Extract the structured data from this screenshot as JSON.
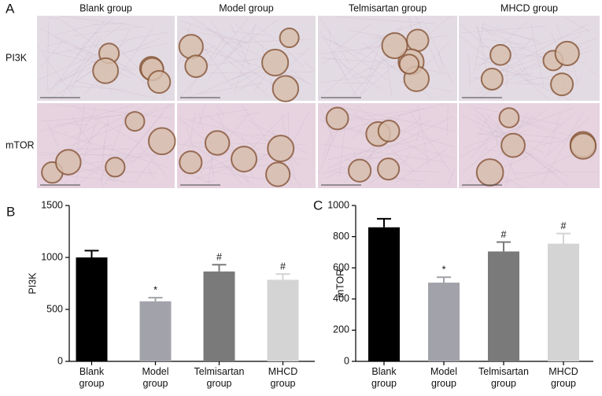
{
  "panel_a": {
    "label": "A",
    "columns": [
      "Blank group",
      "Model group",
      "Telmisartan group",
      "MHCD group"
    ],
    "rows": [
      "PI3K",
      "mTOR"
    ]
  },
  "chart_data": [
    {
      "type": "bar",
      "label": "B",
      "ylabel": "PI3K",
      "categories": [
        "Blank group",
        "Model group",
        "Telmisartan group",
        "MHCD group"
      ],
      "values": [
        1000,
        578,
        865,
        785
      ],
      "errors": [
        65,
        35,
        65,
        55
      ],
      "annotations": [
        null,
        "*",
        "#",
        "#"
      ],
      "colors": [
        "#000000",
        "#a2a2aa",
        "#7a7a7a",
        "#d4d4d4"
      ],
      "ylim": [
        0,
        1500
      ],
      "yticks": [
        0,
        500,
        1000,
        1500
      ]
    },
    {
      "type": "bar",
      "label": "C",
      "ylabel": "mTOR",
      "categories": [
        "Blank group",
        "Model group",
        "Telmisartan group",
        "MHCD group"
      ],
      "values": [
        860,
        505,
        705,
        755
      ],
      "errors": [
        55,
        35,
        60,
        65
      ],
      "annotations": [
        null,
        "*",
        "#",
        "#"
      ],
      "colors": [
        "#000000",
        "#a2a2aa",
        "#7a7a7a",
        "#d4d4d4"
      ],
      "ylim": [
        0,
        1000
      ],
      "yticks": [
        0,
        200,
        400,
        600,
        800,
        1000
      ]
    }
  ]
}
